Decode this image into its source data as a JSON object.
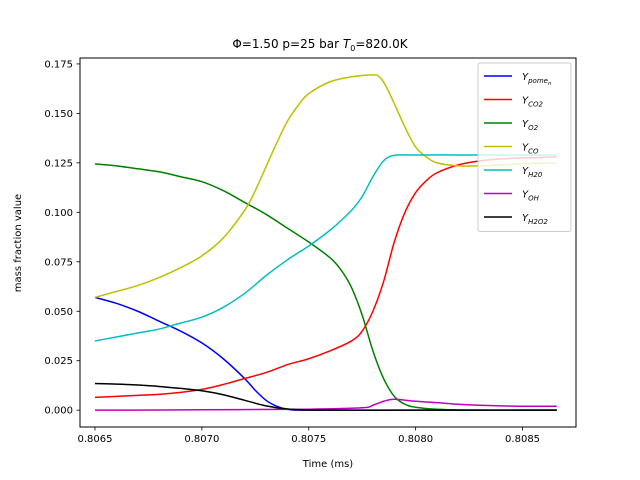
{
  "chart_data": {
    "type": "line",
    "title": {
      "phi": "Φ=1.50",
      "p": "p=25 bar",
      "T0_prefix": "T",
      "T0_sub": "0",
      "T0_val": "=820.0K"
    },
    "xlabel": "Time (ms)",
    "ylabel": "mass fraction value",
    "xlim": [
      0.80643,
      0.80875
    ],
    "ylim": [
      -0.0085,
      0.178
    ],
    "x_ticks": [
      {
        "v": 0.8065,
        "label": "0.8065"
      },
      {
        "v": 0.807,
        "label": "0.8070"
      },
      {
        "v": 0.8075,
        "label": "0.8075"
      },
      {
        "v": 0.808,
        "label": "0.8080"
      },
      {
        "v": 0.8085,
        "label": "0.8085"
      }
    ],
    "y_ticks": [
      {
        "v": 0.0,
        "label": "0.000"
      },
      {
        "v": 0.025,
        "label": "0.025"
      },
      {
        "v": 0.05,
        "label": "0.050"
      },
      {
        "v": 0.075,
        "label": "0.075"
      },
      {
        "v": 0.1,
        "label": "0.100"
      },
      {
        "v": 0.125,
        "label": "0.125"
      },
      {
        "v": 0.15,
        "label": "0.150"
      },
      {
        "v": 0.175,
        "label": "0.175"
      }
    ],
    "grid": false,
    "legend_position": "top-right",
    "series": [
      {
        "name": "Y",
        "sub": "pome",
        "subsub": "n",
        "color": "#0000ff",
        "points": [
          [
            0.8065,
            0.057
          ],
          [
            0.8066,
            0.054
          ],
          [
            0.8067,
            0.05
          ],
          [
            0.8068,
            0.045
          ],
          [
            0.8069,
            0.04
          ],
          [
            0.807,
            0.034
          ],
          [
            0.8071,
            0.026
          ],
          [
            0.8072,
            0.016
          ],
          [
            0.80725,
            0.01
          ],
          [
            0.8073,
            0.005
          ],
          [
            0.80735,
            0.002
          ],
          [
            0.8074,
            0.0005
          ],
          [
            0.8075,
            0.0
          ],
          [
            0.808,
            0.0
          ],
          [
            0.8085,
            0.0
          ],
          [
            0.80866,
            0.0
          ]
        ]
      },
      {
        "name": "Y",
        "sub": "CO2",
        "subsub": "",
        "color": "#ff0000",
        "points": [
          [
            0.8065,
            0.0065
          ],
          [
            0.8066,
            0.007
          ],
          [
            0.8067,
            0.0075
          ],
          [
            0.8068,
            0.008
          ],
          [
            0.8069,
            0.009
          ],
          [
            0.807,
            0.0105
          ],
          [
            0.8071,
            0.013
          ],
          [
            0.8072,
            0.016
          ],
          [
            0.8073,
            0.019
          ],
          [
            0.8074,
            0.023
          ],
          [
            0.8075,
            0.026
          ],
          [
            0.8076,
            0.03
          ],
          [
            0.8077,
            0.035
          ],
          [
            0.80775,
            0.04
          ],
          [
            0.8078,
            0.05
          ],
          [
            0.80785,
            0.065
          ],
          [
            0.8079,
            0.085
          ],
          [
            0.80795,
            0.1
          ],
          [
            0.808,
            0.11
          ],
          [
            0.80805,
            0.116
          ],
          [
            0.8081,
            0.12
          ],
          [
            0.8082,
            0.124
          ],
          [
            0.8083,
            0.126
          ],
          [
            0.8084,
            0.127
          ],
          [
            0.8085,
            0.1275
          ],
          [
            0.80866,
            0.128
          ]
        ]
      },
      {
        "name": "Y",
        "sub": "O2",
        "subsub": "",
        "color": "#008000",
        "points": [
          [
            0.8065,
            0.1245
          ],
          [
            0.8066,
            0.1235
          ],
          [
            0.8067,
            0.122
          ],
          [
            0.8068,
            0.1205
          ],
          [
            0.8069,
            0.118
          ],
          [
            0.807,
            0.1155
          ],
          [
            0.8071,
            0.111
          ],
          [
            0.8072,
            0.105
          ],
          [
            0.8073,
            0.099
          ],
          [
            0.8074,
            0.092
          ],
          [
            0.8075,
            0.085
          ],
          [
            0.8076,
            0.077
          ],
          [
            0.80765,
            0.071
          ],
          [
            0.8077,
            0.062
          ],
          [
            0.80775,
            0.048
          ],
          [
            0.8078,
            0.03
          ],
          [
            0.80785,
            0.016
          ],
          [
            0.8079,
            0.007
          ],
          [
            0.80795,
            0.003
          ],
          [
            0.808,
            0.0015
          ],
          [
            0.8081,
            0.0005
          ],
          [
            0.8083,
            0.0
          ],
          [
            0.8085,
            0.0
          ],
          [
            0.80866,
            0.0
          ]
        ]
      },
      {
        "name": "Y",
        "sub": "CO",
        "subsub": "",
        "color": "#bfbf00",
        "points": [
          [
            0.8065,
            0.057
          ],
          [
            0.8066,
            0.06
          ],
          [
            0.8067,
            0.063
          ],
          [
            0.8068,
            0.067
          ],
          [
            0.8069,
            0.072
          ],
          [
            0.807,
            0.078
          ],
          [
            0.8071,
            0.087
          ],
          [
            0.8072,
            0.101
          ],
          [
            0.80725,
            0.111
          ],
          [
            0.8073,
            0.123
          ],
          [
            0.80735,
            0.135
          ],
          [
            0.8074,
            0.146
          ],
          [
            0.80745,
            0.154
          ],
          [
            0.8075,
            0.16
          ],
          [
            0.8076,
            0.166
          ],
          [
            0.8077,
            0.1685
          ],
          [
            0.8078,
            0.1695
          ],
          [
            0.80783,
            0.1685
          ],
          [
            0.80786,
            0.164
          ],
          [
            0.8079,
            0.155
          ],
          [
            0.80795,
            0.143
          ],
          [
            0.808,
            0.133
          ],
          [
            0.80805,
            0.128
          ],
          [
            0.8081,
            0.125
          ],
          [
            0.8082,
            0.1235
          ],
          [
            0.8083,
            0.1235
          ],
          [
            0.8084,
            0.124
          ],
          [
            0.8085,
            0.1245
          ],
          [
            0.80866,
            0.125
          ]
        ]
      },
      {
        "name": "Y",
        "sub": "H20",
        "subsub": "",
        "color": "#00bfbf",
        "points": [
          [
            0.8065,
            0.035
          ],
          [
            0.8066,
            0.037
          ],
          [
            0.8067,
            0.039
          ],
          [
            0.8068,
            0.041
          ],
          [
            0.8069,
            0.044
          ],
          [
            0.807,
            0.047
          ],
          [
            0.8071,
            0.052
          ],
          [
            0.8072,
            0.059
          ],
          [
            0.8073,
            0.068
          ],
          [
            0.8074,
            0.076
          ],
          [
            0.8075,
            0.083
          ],
          [
            0.8076,
            0.091
          ],
          [
            0.8077,
            0.101
          ],
          [
            0.80775,
            0.108
          ],
          [
            0.8078,
            0.118
          ],
          [
            0.80785,
            0.126
          ],
          [
            0.8079,
            0.1288
          ],
          [
            0.808,
            0.129
          ],
          [
            0.8082,
            0.129
          ],
          [
            0.8084,
            0.129
          ],
          [
            0.80866,
            0.129
          ]
        ]
      },
      {
        "name": "Y",
        "sub": "OH",
        "subsub": "",
        "color": "#bf00bf",
        "points": [
          [
            0.8065,
            0.0
          ],
          [
            0.807,
            0.0002
          ],
          [
            0.8075,
            0.0005
          ],
          [
            0.80775,
            0.0012
          ],
          [
            0.8078,
            0.0025
          ],
          [
            0.80785,
            0.0045
          ],
          [
            0.8079,
            0.0055
          ],
          [
            0.808,
            0.0045
          ],
          [
            0.8081,
            0.0038
          ],
          [
            0.8082,
            0.003
          ],
          [
            0.8083,
            0.0025
          ],
          [
            0.8084,
            0.0022
          ],
          [
            0.8085,
            0.002
          ],
          [
            0.80866,
            0.002
          ]
        ]
      },
      {
        "name": "Y",
        "sub": "H2O2",
        "subsub": "",
        "color": "#000000",
        "points": [
          [
            0.8065,
            0.0135
          ],
          [
            0.8066,
            0.0132
          ],
          [
            0.8067,
            0.0127
          ],
          [
            0.8068,
            0.012
          ],
          [
            0.8069,
            0.011
          ],
          [
            0.807,
            0.0098
          ],
          [
            0.8071,
            0.0078
          ],
          [
            0.8072,
            0.005
          ],
          [
            0.8073,
            0.0022
          ],
          [
            0.8074,
            0.0006
          ],
          [
            0.8075,
            0.0001
          ],
          [
            0.8077,
            0.0
          ],
          [
            0.808,
            0.0
          ],
          [
            0.8085,
            0.0
          ],
          [
            0.80866,
            0.0
          ]
        ]
      }
    ]
  }
}
